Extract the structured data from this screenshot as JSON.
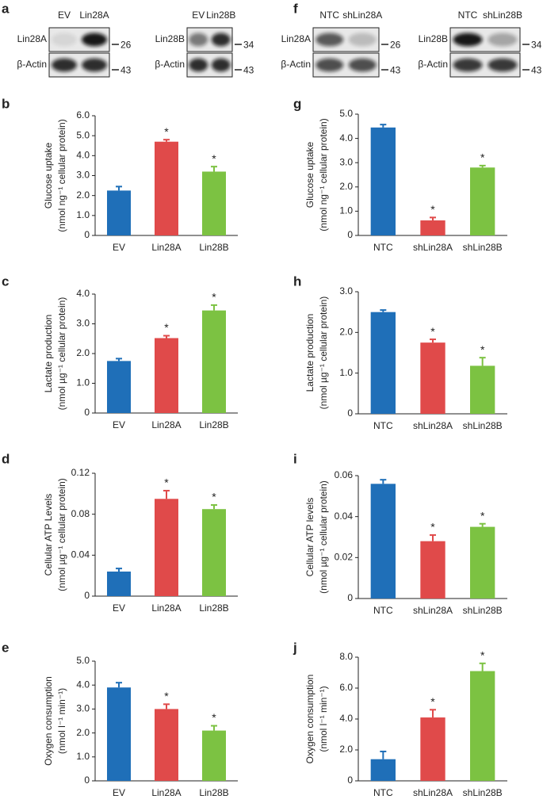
{
  "blots": [
    {
      "panel": "a",
      "groups": [
        {
          "lanes": [
            "EV",
            "Lin28A"
          ],
          "rows": [
            {
              "protein": "Lin28A",
              "size": "26"
            },
            {
              "protein": "β-Actin",
              "size": "43"
            }
          ]
        },
        {
          "lanes": [
            "EV",
            "Lin28B"
          ],
          "rows": [
            {
              "protein": "Lin28B",
              "size": "34"
            },
            {
              "protein": "β-Actin",
              "size": "43"
            }
          ]
        }
      ]
    },
    {
      "panel": "f",
      "groups": [
        {
          "lanes": [
            "NTC",
            "shLin28A"
          ],
          "rows": [
            {
              "protein": "Lin28A",
              "size": "26"
            },
            {
              "protein": "β-Actin",
              "size": "43"
            }
          ]
        },
        {
          "lanes": [
            "NTC",
            "shLin28B"
          ],
          "rows": [
            {
              "protein": "Lin28B",
              "size": "34"
            },
            {
              "protein": "β-Actin",
              "size": "43"
            }
          ]
        }
      ]
    }
  ],
  "chart_data": [
    {
      "panel": "b",
      "type": "bar",
      "ylabel": [
        "Glucose uptake",
        "(nmol ng⁻¹ cellular protein)"
      ],
      "categories": [
        "EV",
        "Lin28A",
        "Lin28B"
      ],
      "values": [
        2.25,
        4.7,
        3.2
      ],
      "errors": [
        0.2,
        0.1,
        0.25
      ],
      "colors": [
        "#1f6fb8",
        "#e04a4a",
        "#7cc242"
      ],
      "significance": [
        null,
        "*",
        "*"
      ],
      "ylim": [
        0,
        6
      ],
      "yticks": [
        0,
        {
          "value": 1,
          "label": "1.0"
        },
        {
          "value": 2,
          "label": "2.0"
        },
        {
          "value": 3,
          "label": "3.0"
        },
        {
          "value": 4,
          "label": "4.0"
        },
        {
          "value": 5,
          "label": "5.0"
        },
        {
          "value": 6,
          "label": "6.0"
        }
      ]
    },
    {
      "panel": "c",
      "type": "bar",
      "ylabel": [
        "Lactate production",
        "(nmol µg⁻¹ cellular protein)"
      ],
      "categories": [
        "EV",
        "Lin28A",
        "Lin28B"
      ],
      "values": [
        1.75,
        2.52,
        3.45
      ],
      "errors": [
        0.08,
        0.08,
        0.18
      ],
      "colors": [
        "#1f6fb8",
        "#e04a4a",
        "#7cc242"
      ],
      "significance": [
        null,
        "*",
        "*"
      ],
      "ylim": [
        0,
        4
      ],
      "yticks": [
        0,
        {
          "value": 1,
          "label": "1.0"
        },
        {
          "value": 2,
          "label": "2.0"
        },
        {
          "value": 3,
          "label": "3.0"
        },
        {
          "value": 4,
          "label": "4.0"
        }
      ]
    },
    {
      "panel": "d",
      "type": "bar",
      "ylabel": [
        "Cellular ATP Levels",
        "(nmol µg⁻¹ cellular protein)"
      ],
      "categories": [
        "EV",
        "Lin28A",
        "Lin28B"
      ],
      "values": [
        0.024,
        0.095,
        0.085
      ],
      "errors": [
        0.003,
        0.008,
        0.004
      ],
      "colors": [
        "#1f6fb8",
        "#e04a4a",
        "#7cc242"
      ],
      "significance": [
        null,
        "*",
        "*"
      ],
      "ylim": [
        0,
        0.12
      ],
      "yticks": [
        0,
        0.04,
        0.08,
        0.12
      ]
    },
    {
      "panel": "e",
      "type": "bar",
      "ylabel": [
        "Oxygen consumption",
        "(nmol l⁻¹ min⁻¹)"
      ],
      "categories": [
        "EV",
        "Lin28A",
        "Lin28B"
      ],
      "values": [
        3.9,
        3.0,
        2.1
      ],
      "errors": [
        0.2,
        0.2,
        0.2
      ],
      "colors": [
        "#1f6fb8",
        "#e04a4a",
        "#7cc242"
      ],
      "significance": [
        null,
        "*",
        "*"
      ],
      "ylim": [
        0,
        5
      ],
      "yticks": [
        0,
        {
          "value": 1,
          "label": "1.0"
        },
        {
          "value": 2,
          "label": "2.0"
        },
        {
          "value": 3,
          "label": "3.0"
        },
        {
          "value": 4,
          "label": "4.0"
        },
        {
          "value": 5,
          "label": "5.0"
        }
      ]
    },
    {
      "panel": "g",
      "type": "bar",
      "ylabel": [
        "Glucose uptake",
        "(nmol ng⁻¹ cellular protein)"
      ],
      "categories": [
        "NTC",
        "shLin28A",
        "shLin28B"
      ],
      "values": [
        4.45,
        0.62,
        2.8
      ],
      "errors": [
        0.12,
        0.12,
        0.08
      ],
      "colors": [
        "#1f6fb8",
        "#e04a4a",
        "#7cc242"
      ],
      "significance": [
        null,
        "*",
        "*"
      ],
      "ylim": [
        0,
        5
      ],
      "yticks": [
        0,
        {
          "value": 1,
          "label": "1.0"
        },
        {
          "value": 2,
          "label": "2.0"
        },
        {
          "value": 3,
          "label": "3.0"
        },
        {
          "value": 4,
          "label": "4.0"
        },
        {
          "value": 5,
          "label": "5.0"
        }
      ]
    },
    {
      "panel": "h",
      "type": "bar",
      "ylabel": [
        "Lactate production",
        "(nmol µg⁻¹ cellular protein)"
      ],
      "categories": [
        "NTC",
        "shLin28A",
        "shLin28B"
      ],
      "values": [
        2.5,
        1.75,
        1.18
      ],
      "errors": [
        0.05,
        0.08,
        0.2
      ],
      "colors": [
        "#1f6fb8",
        "#e04a4a",
        "#7cc242"
      ],
      "significance": [
        null,
        "*",
        "*"
      ],
      "ylim": [
        0,
        3
      ],
      "yticks": [
        0,
        {
          "value": 1,
          "label": "1.0"
        },
        {
          "value": 2,
          "label": "2.0"
        },
        {
          "value": 3,
          "label": "3.0"
        }
      ]
    },
    {
      "panel": "i",
      "type": "bar",
      "ylabel": [
        "Cellular ATP levels",
        "(nmol µg⁻¹ cellular protein)"
      ],
      "categories": [
        "NTC",
        "shLin28A",
        "shLin28B"
      ],
      "values": [
        0.056,
        0.028,
        0.035
      ],
      "errors": [
        0.002,
        0.003,
        0.0015
      ],
      "colors": [
        "#1f6fb8",
        "#e04a4a",
        "#7cc242"
      ],
      "significance": [
        null,
        "*",
        "*"
      ],
      "ylim": [
        0,
        0.06
      ],
      "yticks": [
        0,
        0.02,
        0.04,
        0.06
      ]
    },
    {
      "panel": "j",
      "type": "bar",
      "ylabel": [
        "Oxygen consumption",
        "(nmol l⁻¹ min⁻¹)"
      ],
      "categories": [
        "NTC",
        "shLin28A",
        "shLin28B"
      ],
      "values": [
        1.4,
        4.1,
        7.1
      ],
      "errors": [
        0.5,
        0.5,
        0.5
      ],
      "colors": [
        "#1f6fb8",
        "#e04a4a",
        "#7cc242"
      ],
      "significance": [
        null,
        "*",
        "*"
      ],
      "ylim": [
        0,
        8
      ],
      "yticks": [
        0,
        {
          "value": 2,
          "label": "2.0"
        },
        {
          "value": 4,
          "label": "4.0"
        },
        {
          "value": 6,
          "label": "6.0"
        },
        {
          "value": 8,
          "label": "8.0"
        }
      ]
    }
  ]
}
